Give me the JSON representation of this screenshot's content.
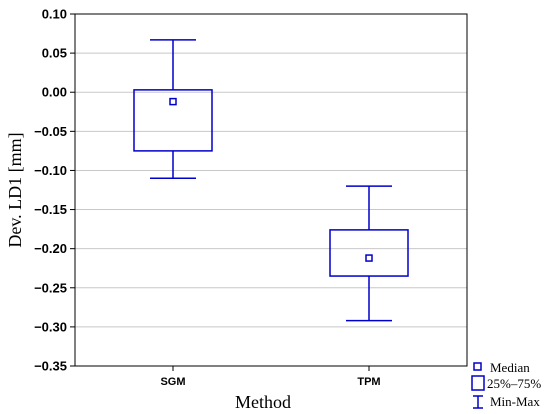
{
  "chart_data": {
    "type": "boxplot",
    "title": "",
    "xlabel": "Method",
    "ylabel": "Dev. LD1 [mm]",
    "ylim": [
      -0.35,
      0.1
    ],
    "yticks": [
      0.1,
      0.05,
      0.0,
      -0.05,
      -0.1,
      -0.15,
      -0.2,
      -0.25,
      -0.3,
      -0.35
    ],
    "ytick_labels": [
      "0.10",
      "0.05",
      "0.00",
      "−0.05",
      "−0.10",
      "−0.15",
      "−0.20",
      "−0.25",
      "−0.30",
      "−0.35"
    ],
    "grid": true,
    "categories": [
      "SGM",
      "TPM"
    ],
    "boxes": [
      {
        "category": "SGM",
        "min": -0.11,
        "q1": -0.075,
        "median": -0.012,
        "q3": 0.003,
        "max": 0.067
      },
      {
        "category": "TPM",
        "min": -0.292,
        "q1": -0.235,
        "median": -0.212,
        "q3": -0.176,
        "max": -0.12
      }
    ],
    "legend": {
      "placement": "bottom-right",
      "entries": [
        "Median",
        "25%–75%",
        "Min-Max"
      ]
    },
    "colors": {
      "box": "#0000cc",
      "grid": "#c8c8c8",
      "frame": "#000000"
    }
  }
}
